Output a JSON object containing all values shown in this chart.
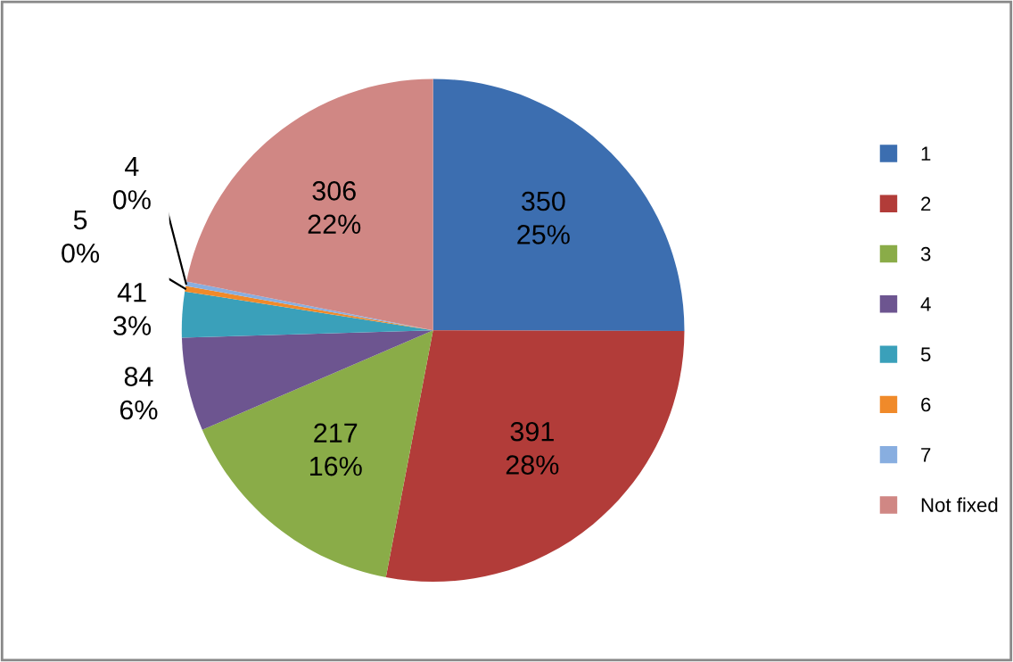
{
  "chart_data": {
    "type": "pie",
    "categories": [
      "1",
      "2",
      "3",
      "4",
      "5",
      "6",
      "7",
      "Not fixed"
    ],
    "values": [
      350,
      391,
      217,
      84,
      41,
      5,
      4,
      306
    ],
    "value_labels": [
      "350\n25%",
      "391\n28%",
      "217\n16%",
      "84\n6%",
      "41\n3%",
      "5\n0%",
      "4\n0%",
      "306\n22%"
    ],
    "colors": [
      "#3c6eb0",
      "#b23c39",
      "#8aac48",
      "#6d5590",
      "#3aa0ba",
      "#f08a2a",
      "#88aee0",
      "#d08784"
    ],
    "legend": "right"
  }
}
